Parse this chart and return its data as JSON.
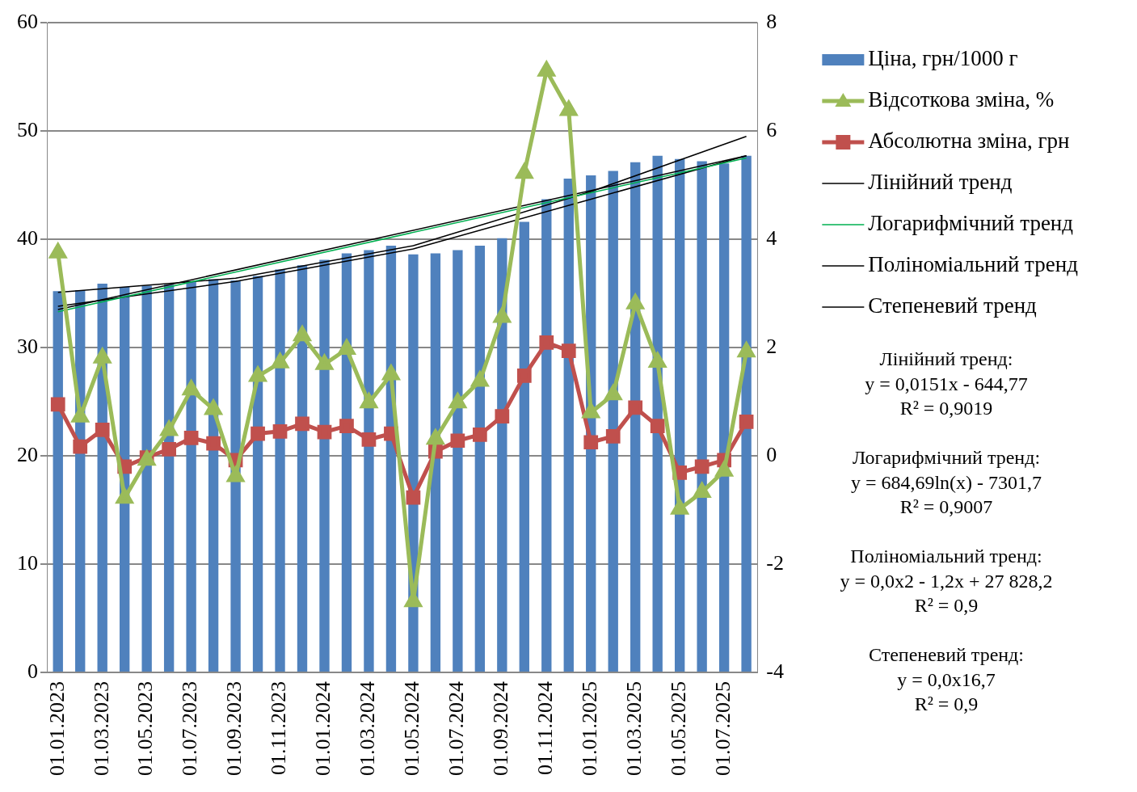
{
  "chart_data": {
    "type": "bar",
    "categories": [
      "01.01.2023",
      null,
      "01.03.2023",
      null,
      "01.05.2023",
      null,
      "01.07.2023",
      null,
      "01.09.2023",
      null,
      "01.11.2023",
      null,
      "01.01.2024",
      null,
      "01.03.2024",
      null,
      "01.05.2024",
      null,
      "01.07.2024",
      null,
      "01.09.2024",
      null,
      "01.11.2024",
      null,
      "01.01.2025",
      null,
      "01.03.2025",
      null,
      "01.05.2025",
      null,
      "01.07.2025",
      null
    ],
    "series": [
      {
        "name": "Ціна, грн/1000 г",
        "color": "#4f81bd",
        "values": [
          35.2,
          35.3,
          35.9,
          35.6,
          35.7,
          35.8,
          36.1,
          36.3,
          36.2,
          36.6,
          37.2,
          37.6,
          38.1,
          38.7,
          39.0,
          39.4,
          38.6,
          38.7,
          39.0,
          39.4,
          40.1,
          41.6,
          43.7,
          45.6,
          45.9,
          46.3,
          47.1,
          47.7,
          47.4,
          47.2,
          47.0,
          47.7
        ]
      },
      {
        "name": "Відсоткова зміна, %",
        "type": "line",
        "axis": "y2",
        "marker": "triangle",
        "color": "#9bbb59",
        "values": [
          3.75,
          0.72,
          1.81,
          -0.78,
          -0.08,
          0.47,
          1.22,
          0.86,
          -0.38,
          1.47,
          1.72,
          2.22,
          1.69,
          1.97,
          0.98,
          1.5,
          -2.69,
          0.31,
          0.98,
          1.38,
          2.56,
          5.22,
          7.11,
          6.38,
          0.8,
          1.13,
          2.81,
          1.73,
          -0.98,
          -0.67,
          -0.28,
          1.92
        ]
      },
      {
        "name": "Абсолютна зміна, грн",
        "type": "line",
        "axis": "y2",
        "marker": "square",
        "color": "#c0504d",
        "values": [
          0.95,
          0.17,
          0.48,
          -0.2,
          -0.03,
          0.12,
          0.33,
          0.23,
          -0.08,
          0.41,
          0.45,
          0.59,
          0.44,
          0.55,
          0.3,
          0.41,
          -0.77,
          0.08,
          0.28,
          0.39,
          0.73,
          1.48,
          2.09,
          1.94,
          0.25,
          0.36,
          0.89,
          0.55,
          -0.31,
          -0.2,
          -0.08,
          0.63
        ]
      },
      {
        "name": "Лінійний тренд",
        "type": "line",
        "marker": "none",
        "color": "#000000",
        "values": [
          33.5,
          null,
          null,
          null,
          null,
          null,
          null,
          null,
          null,
          null,
          null,
          null,
          null,
          null,
          null,
          null,
          null,
          null,
          null,
          null,
          null,
          null,
          null,
          null,
          null,
          null,
          null,
          null,
          null,
          null,
          null,
          47.7
        ]
      },
      {
        "name": "Логарифмічний тренд",
        "type": "line",
        "marker": "none",
        "color": "#00b050",
        "values": [
          33.3,
          null,
          null,
          null,
          null,
          null,
          null,
          null,
          null,
          null,
          null,
          null,
          null,
          null,
          null,
          null,
          null,
          null,
          null,
          null,
          null,
          null,
          null,
          null,
          null,
          null,
          null,
          null,
          null,
          null,
          null,
          47.5
        ]
      },
      {
        "name": "Поліноміальний тренд",
        "type": "line",
        "marker": "none",
        "color": "#000000",
        "values": [
          35.1,
          null,
          null,
          null,
          null,
          null,
          null,
          null,
          36.4,
          null,
          null,
          null,
          null,
          null,
          null,
          null,
          39.4,
          null,
          null,
          null,
          null,
          null,
          null,
          null,
          44.4,
          null,
          null,
          null,
          null,
          null,
          null,
          49.5
        ]
      },
      {
        "name": "Степеневий тренд",
        "type": "line",
        "marker": "none",
        "color": "#000000",
        "values": [
          33.8,
          null,
          null,
          null,
          null,
          null,
          null,
          null,
          36.1,
          null,
          null,
          null,
          null,
          null,
          null,
          null,
          39.1,
          null,
          null,
          null,
          null,
          null,
          null,
          null,
          43.7,
          null,
          null,
          null,
          null,
          null,
          null,
          47.7
        ]
      }
    ],
    "ylim": [
      0,
      60
    ],
    "yticks": [
      0,
      10,
      20,
      30,
      40,
      50,
      60
    ],
    "y2lim": [
      -4,
      8
    ],
    "y2ticks": [
      -4,
      -2,
      0,
      2,
      4,
      6,
      8
    ],
    "grid": "y",
    "legend": "right",
    "annotations": [
      "Лінійний тренд:",
      "y = 0,0151x - 644,77",
      "R² = 0,9019",
      "Логарифмічний тренд:",
      "y = 684,69ln(x) - 7301,7",
      "R² = 0,9007",
      "Поліноміальний тренд:",
      "y = 0,0x2 - 1,2x + 27 828,2",
      "R² = 0,9",
      "Степеневий тренд:",
      "y = 0,0x16,7",
      "R² = 0,9"
    ]
  }
}
